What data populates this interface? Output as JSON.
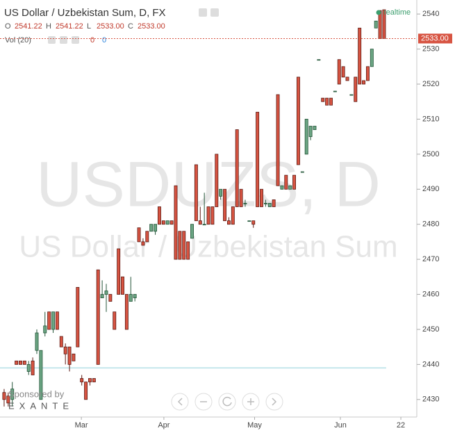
{
  "header": {
    "title": "US Dollar / Uzbekistan Sum, D, FX",
    "ohlc": [
      {
        "label": "O",
        "value": "2541.22"
      },
      {
        "label": "H",
        "value": "2541.22"
      },
      {
        "label": "L",
        "value": "2533.00"
      },
      {
        "label": "C",
        "value": "2533.00"
      }
    ],
    "volume": {
      "label": "Vol (20)",
      "values": [
        "0",
        "0"
      ]
    },
    "status": "realtime"
  },
  "watermark": {
    "symbol": "USDUZS, D",
    "name": "US Dollar / Uzbekistan Sum"
  },
  "sponsor": {
    "text": "Sponsored by",
    "brand": "EXANTE"
  },
  "chart_data": {
    "type": "candlestick",
    "up_color": "#6ba583",
    "down_color": "#d75442",
    "categories": [
      null,
      null,
      null,
      null,
      null,
      null,
      null,
      null,
      null,
      null,
      null,
      null,
      null,
      null,
      null,
      null,
      null,
      null,
      null,
      null,
      null,
      null,
      null,
      null,
      null,
      null,
      null,
      null,
      null,
      null,
      null,
      null,
      null,
      null,
      null,
      null,
      null,
      null,
      null,
      null,
      null,
      null,
      null,
      null,
      null,
      null,
      null,
      null,
      null,
      null,
      null,
      null,
      null,
      null,
      null,
      null,
      null,
      null,
      null,
      null,
      null,
      null,
      null,
      null,
      null,
      null,
      null,
      null,
      null,
      null,
      null,
      null,
      null,
      null,
      null,
      null,
      null,
      null,
      null,
      null,
      null,
      null,
      null,
      null,
      null,
      null,
      null,
      null,
      null,
      null,
      null,
      null,
      null,
      null
    ],
    "open": [
      2432,
      2431,
      2430,
      2441,
      2441,
      2441,
      2438,
      2441,
      2444,
      2430,
      2449,
      2455,
      2450,
      2455,
      2448,
      2445,
      2445,
      2443,
      2462,
      2436,
      2435,
      2436,
      2436,
      2467,
      2459,
      2460,
      2460,
      2455,
      2473,
      2465,
      2460,
      2458,
      2459,
      2479,
      2475,
      2478,
      2478,
      2478,
      2485,
      2481,
      2480,
      2481,
      2491,
      2478,
      2478,
      2475,
      2476,
      2497,
      2481,
      2480,
      2485,
      2485,
      2500,
      2488,
      2490,
      2481,
      2485,
      2507,
      2490,
      2486,
      2481,
      2481,
      2512,
      2490,
      2486,
      2485,
      2487,
      2517,
      2490,
      2494,
      2490,
      2494,
      2522,
      2495,
      2500,
      2505,
      2507,
      2527,
      2516,
      2516,
      2516,
      2518,
      2527,
      2525,
      2522,
      2517,
      2522,
      2536,
      2521,
      2525,
      2525,
      2536,
      2541,
      2541.22
    ],
    "high": [
      2433,
      2432,
      2435,
      2441,
      2441,
      2441,
      2441,
      2442,
      2450,
      2444,
      2455,
      2455,
      2455,
      2455,
      2448,
      2446,
      2445,
      2443,
      2462,
      2437,
      2435,
      2436,
      2436,
      2467,
      2464,
      2463,
      2460,
      2455,
      2473,
      2465,
      2460,
      2465,
      2460,
      2479,
      2476,
      2478,
      2480,
      2480,
      2485,
      2481,
      2481,
      2481,
      2491,
      2478,
      2478,
      2475,
      2480,
      2497,
      2485,
      2489,
      2485,
      2485,
      2500,
      2490,
      2490,
      2482,
      2485,
      2507,
      2490,
      2487,
      2481,
      2481,
      2512,
      2490,
      2487,
      2486,
      2487,
      2517,
      2491,
      2494,
      2491,
      2494,
      2522,
      2495,
      2510,
      2508,
      2508,
      2527,
      2516,
      2516,
      2516,
      2518,
      2527,
      2525,
      2522,
      2517,
      2522,
      2536,
      2521,
      2525,
      2530,
      2538,
      2541,
      2541.22
    ],
    "low": [
      2428,
      2428,
      2428,
      2440,
      2440,
      2440,
      2437,
      2437,
      2443,
      2430,
      2448,
      2450,
      2449,
      2450,
      2445,
      2440,
      2438,
      2441,
      2445,
      2434,
      2430,
      2434,
      2435,
      2440,
      2459,
      2455,
      2458,
      2450,
      2460,
      2460,
      2450,
      2458,
      2458,
      2475,
      2474,
      2475,
      2478,
      2477,
      2480,
      2480,
      2480,
      2480,
      2470,
      2470,
      2470,
      2470,
      2476,
      2481,
      2480,
      2480,
      2480,
      2480,
      2485,
      2487,
      2481,
      2480,
      2480,
      2485,
      2485,
      2485,
      2481,
      2479,
      2485,
      2485,
      2485,
      2485,
      2485,
      2491,
      2490,
      2490,
      2490,
      2490,
      2497,
      2495,
      2500,
      2504,
      2507,
      2527,
      2515,
      2514,
      2514,
      2518,
      2520,
      2522,
      2521,
      2517,
      2515,
      2520,
      2520,
      2521,
      2525,
      2536,
      2533,
      2533
    ],
    "close": [
      2430,
      2429,
      2433,
      2440,
      2440,
      2440,
      2440,
      2437,
      2449,
      2444,
      2451,
      2450,
      2455,
      2450,
      2445,
      2443,
      2440,
      2441,
      2445,
      2435,
      2430,
      2435,
      2435,
      2440,
      2460,
      2461,
      2458,
      2450,
      2460,
      2460,
      2450,
      2460,
      2460,
      2475,
      2474,
      2475,
      2480,
      2480,
      2480,
      2480,
      2481,
      2480,
      2470,
      2470,
      2470,
      2470,
      2480,
      2481,
      2480,
      2480,
      2480,
      2480,
      2485,
      2490,
      2481,
      2480,
      2480,
      2485,
      2485,
      2486,
      2481,
      2480,
      2485,
      2485,
      2486,
      2486,
      2485,
      2491,
      2491,
      2490,
      2491,
      2490,
      2497,
      2495,
      2510,
      2508,
      2508,
      2527,
      2515,
      2514,
      2514,
      2518,
      2520,
      2522,
      2521,
      2517,
      2515,
      2520,
      2520,
      2521,
      2530,
      2538,
      2533,
      2533
    ],
    "ylim": [
      2425,
      2544
    ],
    "yticks": [
      2430,
      2440,
      2450,
      2460,
      2470,
      2480,
      2490,
      2500,
      2510,
      2520,
      2530,
      2540
    ],
    "xlim": [
      -0.5,
      101
    ],
    "xticks": [
      {
        "value": 18.9,
        "label": "Mar"
      },
      {
        "value": 39.1,
        "label": "Apr"
      },
      {
        "value": 61.3,
        "label": "May"
      },
      {
        "value": 82.3,
        "label": "Jun"
      },
      {
        "value": 97.1,
        "label": "22"
      }
    ],
    "last_price": {
      "value": 2533,
      "label": "2533.00",
      "color": "#d75442"
    },
    "horizontal_line": {
      "value": 2439,
      "color": "#b2dfe6"
    }
  }
}
